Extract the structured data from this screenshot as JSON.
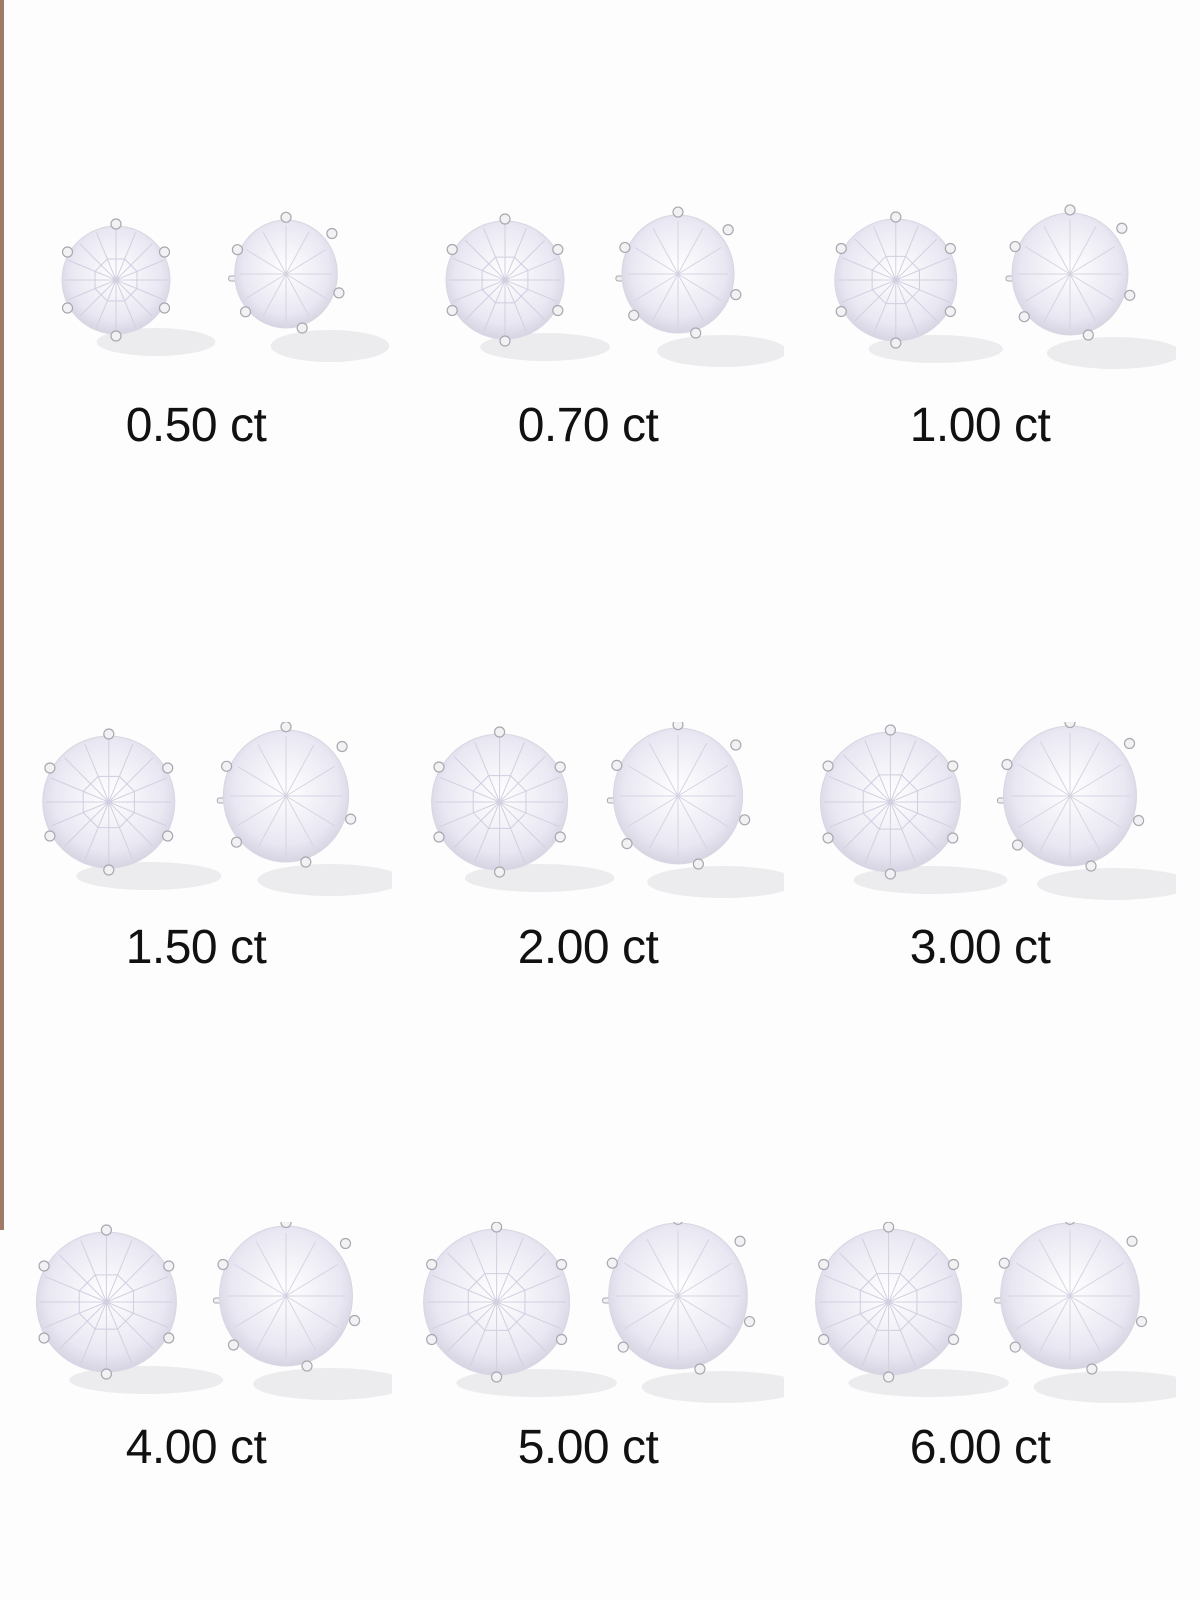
{
  "product": "stud-earrings",
  "colors": {
    "background": "#fdfdfd",
    "text": "#111111",
    "metal": "#e4e4e8",
    "stone": "#eceaf4"
  },
  "items": [
    {
      "label": "0.50 ct",
      "carat": 0.5
    },
    {
      "label": "0.70 ct",
      "carat": 0.7
    },
    {
      "label": "1.00 ct",
      "carat": 1.0
    },
    {
      "label": "1.50 ct",
      "carat": 1.5
    },
    {
      "label": "2.00 ct",
      "carat": 2.0
    },
    {
      "label": "3.00 ct",
      "carat": 3.0
    },
    {
      "label": "4.00 ct",
      "carat": 4.0
    },
    {
      "label": "5.00 ct",
      "carat": 5.0
    },
    {
      "label": "6.00 ct",
      "carat": 6.0
    }
  ]
}
